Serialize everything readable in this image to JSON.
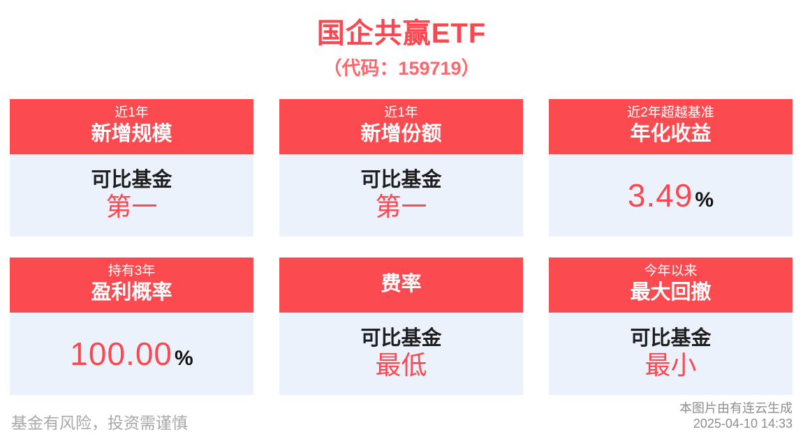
{
  "page": {
    "title": "国企共赢ETF",
    "subtitle": "（代码：159719）"
  },
  "cards": [
    {
      "header_line1": "近1年",
      "header_line2": "新增规模",
      "body_label": "可比基金",
      "body_highlight": "第一"
    },
    {
      "header_line1": "近1年",
      "header_line2": "新增份额",
      "body_label": "可比基金",
      "body_highlight": "第一"
    },
    {
      "header_line1": "近2年超越基准",
      "header_line2": "年化收益",
      "value": "3.49",
      "unit": "%"
    },
    {
      "header_line1": "持有3年",
      "header_line2": "盈利概率",
      "value": "100.00",
      "unit": "%"
    },
    {
      "header_line1": "",
      "header_line2": "费率",
      "body_label": "可比基金",
      "body_highlight": "最低"
    },
    {
      "header_line1": "今年以来",
      "header_line2": "最大回撤",
      "body_label": "可比基金",
      "body_highlight": "最小"
    }
  ],
  "footer": {
    "disclaimer": "基金有风险，投资需谨慎",
    "credit": "本图片由有连云生成",
    "timestamp": "2025-04-10 14:33"
  },
  "colors": {
    "header_red": "#fc4a51",
    "title_red": "#fb4850",
    "subtitle_red": "#fc666c",
    "card_body_bg": "#ecf2fc",
    "text_dark": "#1f1f1f",
    "disclaimer_gray": "#a8a8a8",
    "credit_gray": "#8e8e8e"
  }
}
